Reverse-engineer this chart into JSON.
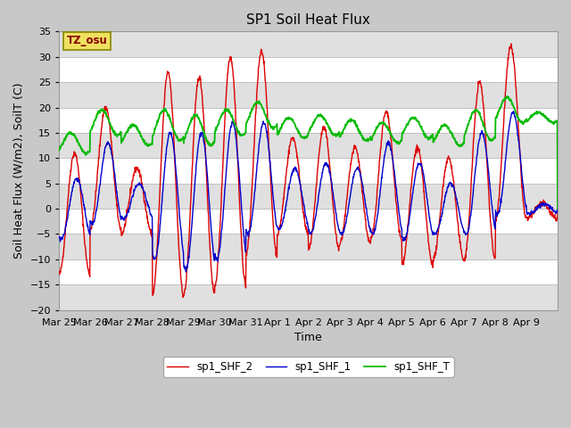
{
  "title": "SP1 Soil Heat Flux",
  "ylabel": "Soil Heat Flux (W/m2), SoilT (C)",
  "xlabel": "Time",
  "ylim": [
    -20,
    35
  ],
  "yticks": [
    -20,
    -15,
    -10,
    -5,
    0,
    5,
    10,
    15,
    20,
    25,
    30,
    35
  ],
  "xtick_labels": [
    "Mar 25",
    "Mar 26",
    "Mar 27",
    "Mar 28",
    "Mar 29",
    "Mar 30",
    "Mar 31",
    "Apr 1",
    "Apr 2",
    "Apr 3",
    "Apr 4",
    "Apr 5",
    "Apr 6",
    "Apr 7",
    "Apr 8",
    "Apr 9"
  ],
  "color_shf2": "#dd0000",
  "color_shf1": "#0000cc",
  "color_shft": "#00bb00",
  "legend_labels": [
    "sp1_SHF_2",
    "sp1_SHF_1",
    "sp1_SHF_T"
  ],
  "tz_label": "TZ_osu",
  "fig_bg": "#c8c8c8",
  "plot_bg": "#ffffff",
  "band_color": "#e0e0e0",
  "grid_color": "#c0c0c0",
  "title_fontsize": 11,
  "label_fontsize": 9,
  "tick_fontsize": 8
}
